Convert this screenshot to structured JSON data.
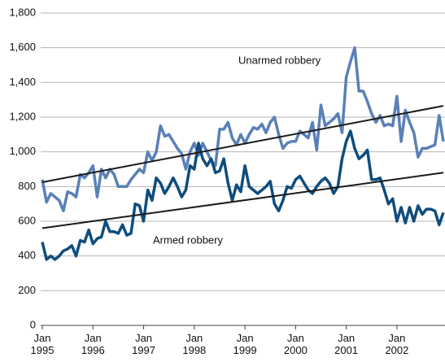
{
  "chart_data": {
    "type": "line",
    "x": [
      "1995-01",
      "1995-02",
      "1995-03",
      "1995-04",
      "1995-05",
      "1995-06",
      "1995-07",
      "1995-08",
      "1995-09",
      "1995-10",
      "1995-11",
      "1995-12",
      "1996-01",
      "1996-02",
      "1996-03",
      "1996-04",
      "1996-05",
      "1996-06",
      "1996-07",
      "1996-08",
      "1996-09",
      "1996-10",
      "1996-11",
      "1996-12",
      "1997-01",
      "1997-02",
      "1997-03",
      "1997-04",
      "1997-05",
      "1997-06",
      "1997-07",
      "1997-08",
      "1997-09",
      "1997-10",
      "1997-11",
      "1997-12",
      "1998-01",
      "1998-02",
      "1998-03",
      "1998-04",
      "1998-05",
      "1998-06",
      "1998-07",
      "1998-08",
      "1998-09",
      "1998-10",
      "1998-11",
      "1998-12",
      "1999-01",
      "1999-02",
      "1999-03",
      "1999-04",
      "1999-05",
      "1999-06",
      "1999-07",
      "1999-08",
      "1999-09",
      "1999-10",
      "1999-11",
      "1999-12",
      "2000-01",
      "2000-02",
      "2000-03",
      "2000-04",
      "2000-05",
      "2000-06",
      "2000-07",
      "2000-08",
      "2000-09",
      "2000-10",
      "2000-11",
      "2000-12",
      "2001-01",
      "2001-02",
      "2001-03",
      "2001-04",
      "2001-05",
      "2001-06",
      "2001-07",
      "2001-08",
      "2001-09",
      "2001-10",
      "2001-11",
      "2001-12",
      "2002-01",
      "2002-02",
      "2002-03",
      "2002-04",
      "2002-05",
      "2002-06",
      "2002-07",
      "2002-08",
      "2002-09",
      "2002-10",
      "2002-11",
      "2002-12"
    ],
    "series": [
      {
        "name": "Unarmed robbery",
        "color": "#5a80b8",
        "values": [
          840,
          710,
          760,
          740,
          720,
          660,
          770,
          760,
          740,
          870,
          850,
          880,
          920,
          740,
          900,
          850,
          900,
          870,
          800,
          800,
          800,
          840,
          870,
          900,
          880,
          1000,
          950,
          1000,
          1150,
          1090,
          1100,
          1060,
          1020,
          990,
          900,
          1000,
          1050,
          980,
          1050,
          1000,
          950,
          920,
          1130,
          1130,
          1170,
          1080,
          1040,
          1100,
          1050,
          1100,
          1140,
          1130,
          1160,
          1110,
          1170,
          1200,
          1100,
          1020,
          1050,
          1060,
          1060,
          1120,
          1100,
          1080,
          1170,
          1010,
          1270,
          1150,
          1170,
          1190,
          1220,
          1110,
          1430,
          1520,
          1600,
          1350,
          1350,
          1290,
          1220,
          1170,
          1210,
          1150,
          1160,
          1150,
          1320,
          1060,
          1240,
          1170,
          1110,
          970,
          1020,
          1020,
          1030,
          1040,
          1210,
          1060
        ],
        "trend": [
          825,
          1265
        ]
      },
      {
        "name": "Armed robbery",
        "color": "#0e4d7e",
        "values": [
          480,
          380,
          400,
          380,
          400,
          430,
          440,
          460,
          400,
          490,
          480,
          550,
          470,
          500,
          510,
          600,
          540,
          540,
          530,
          580,
          520,
          530,
          700,
          690,
          600,
          780,
          720,
          850,
          820,
          760,
          800,
          850,
          800,
          740,
          780,
          920,
          900,
          1050,
          960,
          920,
          960,
          880,
          890,
          960,
          820,
          720,
          810,
          770,
          920,
          800,
          780,
          760,
          780,
          800,
          830,
          700,
          660,
          720,
          800,
          790,
          840,
          860,
          820,
          780,
          760,
          800,
          830,
          850,
          820,
          760,
          800,
          960,
          1060,
          1120,
          1020,
          960,
          980,
          1010,
          840,
          840,
          850,
          780,
          700,
          730,
          600,
          680,
          590,
          680,
          600,
          690,
          640,
          670,
          670,
          660,
          580,
          650
        ],
        "trend": [
          560,
          880
        ]
      }
    ],
    "trend_color": "#1a1a1a",
    "ylim": [
      0,
      1800
    ],
    "yticks": [
      0,
      200,
      400,
      600,
      800,
      {
        "value": 1000,
        "label": "1,000"
      },
      {
        "value": 1200,
        "label": "1,200"
      },
      {
        "value": 1400,
        "label": "1,400"
      },
      {
        "value": 1600,
        "label": "1,600"
      },
      {
        "value": 1800,
        "label": "1,800"
      }
    ],
    "xticks": [
      {
        "value": "1995-01",
        "label": [
          "Jan",
          "1995"
        ]
      },
      {
        "value": "1996-01",
        "label": [
          "Jan",
          "1996"
        ]
      },
      {
        "value": "1997-01",
        "label": [
          "Jan",
          "1997"
        ]
      },
      {
        "value": "1998-01",
        "label": [
          "Jan",
          "1998"
        ]
      },
      {
        "value": "1999-01",
        "label": [
          "Jan",
          "1999"
        ]
      },
      {
        "value": "2000-01",
        "label": [
          "Jan",
          "2000"
        ]
      },
      {
        "value": "2001-01",
        "label": [
          "Jan",
          "2001"
        ]
      },
      {
        "value": "2002-01",
        "label": [
          "Jan",
          "2002"
        ]
      }
    ],
    "grid": true
  }
}
